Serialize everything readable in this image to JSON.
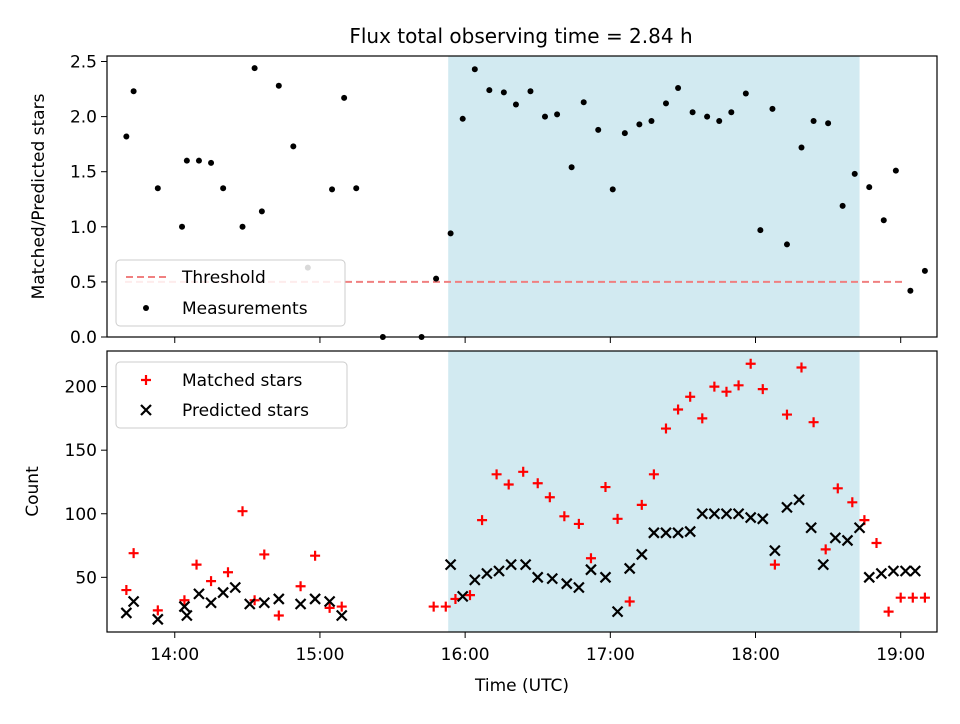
{
  "title": "Flux total observing time = 2.84 h",
  "colors": {
    "band": "#add8e6",
    "threshold": "#f08080",
    "matched": "#ff0000",
    "predicted": "#000000",
    "measurement": "#000000"
  },
  "chart_data": [
    {
      "type": "scatter",
      "ylabel": "Matched/Predicted stars",
      "xlim": [
        "13:32",
        "19:15"
      ],
      "ylim": [
        0,
        2.55
      ],
      "yticks": [
        "0.0",
        "0.5",
        "1.0",
        "1.5",
        "2.0",
        "2.5"
      ],
      "shaded_interval": [
        "15:53",
        "18:43"
      ],
      "threshold": 0.5,
      "legend": {
        "position": "lower-left",
        "entries": [
          "Threshold",
          "Measurements"
        ]
      },
      "series": [
        {
          "name": "Measurements",
          "x": [
            "13:40",
            "13:43",
            "13:53",
            "14:03",
            "14:05",
            "14:10",
            "14:15",
            "14:20",
            "14:28",
            "14:33",
            "14:36",
            "14:43",
            "14:49",
            "14:55",
            "15:05",
            "15:10",
            "15:15",
            "15:26",
            "15:42",
            "15:48",
            "15:54",
            "15:59",
            "16:04",
            "16:10",
            "16:16",
            "16:21",
            "16:27",
            "16:33",
            "16:38",
            "16:44",
            "16:49",
            "16:55",
            "17:01",
            "17:06",
            "17:12",
            "17:17",
            "17:23",
            "17:28",
            "17:34",
            "17:40",
            "17:45",
            "17:50",
            "17:56",
            "18:02",
            "18:07",
            "18:13",
            "18:19",
            "18:24",
            "18:30",
            "18:36",
            "18:41",
            "18:47",
            "18:53",
            "18:58",
            "19:04",
            "19:10"
          ],
          "y": [
            1.82,
            2.23,
            1.35,
            1.0,
            1.6,
            1.6,
            1.58,
            1.35,
            1.0,
            2.44,
            1.14,
            2.28,
            1.73,
            0.63,
            1.34,
            2.17,
            1.35,
            0.0,
            0.0,
            0.53,
            0.94,
            1.98,
            2.43,
            2.24,
            2.22,
            2.11,
            2.23,
            2.0,
            2.02,
            1.54,
            2.13,
            1.88,
            1.34,
            1.85,
            1.93,
            1.96,
            2.12,
            2.26,
            2.04,
            2.0,
            1.96,
            2.04,
            2.21,
            0.97,
            2.07,
            0.84,
            1.72,
            1.96,
            1.94,
            1.19,
            1.48,
            1.36,
            1.06,
            1.51,
            0.42,
            0.6
          ]
        }
      ]
    },
    {
      "type": "scatter",
      "xlabel": "Time (UTC)",
      "ylabel": "Count",
      "xlim": [
        "13:32",
        "19:15"
      ],
      "ylim": [
        7,
        228
      ],
      "yticks": [
        "50",
        "100",
        "150",
        "200"
      ],
      "xticks": [
        "14:00",
        "15:00",
        "16:00",
        "17:00",
        "18:00",
        "19:00"
      ],
      "shaded_interval": [
        "15:53",
        "18:43"
      ],
      "legend": {
        "position": "upper-left",
        "entries": [
          "Matched stars",
          "Predicted stars"
        ]
      },
      "series": [
        {
          "name": "Matched stars",
          "x": [
            "13:40",
            "13:43",
            "13:53",
            "14:04",
            "14:09",
            "14:15",
            "14:22",
            "14:28",
            "14:33",
            "14:37",
            "14:43",
            "14:52",
            "14:58",
            "15:04",
            "15:09",
            "15:47",
            "15:52",
            "15:56",
            "16:02",
            "16:07",
            "16:13",
            "16:18",
            "16:24",
            "16:30",
            "16:35",
            "16:41",
            "16:47",
            "16:52",
            "16:58",
            "17:03",
            "17:08",
            "17:13",
            "17:18",
            "17:23",
            "17:28",
            "17:33",
            "17:38",
            "17:43",
            "17:48",
            "17:53",
            "17:58",
            "18:03",
            "18:08",
            "18:13",
            "18:19",
            "18:24",
            "18:29",
            "18:34",
            "18:40",
            "18:45",
            "18:50",
            "18:55",
            "19:00",
            "19:05",
            "19:10"
          ],
          "y": [
            40,
            69,
            24,
            32,
            60,
            47,
            54,
            102,
            32,
            68,
            20,
            43,
            67,
            26,
            27,
            27,
            27,
            33,
            36,
            95,
            131,
            123,
            133,
            124,
            113,
            98,
            92,
            65,
            121,
            96,
            31,
            107,
            131,
            167,
            182,
            192,
            175,
            200,
            196,
            201,
            218,
            198,
            60,
            178,
            215,
            172,
            72,
            120,
            109,
            95,
            77,
            23,
            34,
            34,
            34
          ]
        },
        {
          "name": "Predicted stars",
          "x": [
            "13:40",
            "13:43",
            "13:53",
            "14:04",
            "14:05",
            "14:10",
            "14:15",
            "14:20",
            "14:25",
            "14:31",
            "14:37",
            "14:43",
            "14:52",
            "14:58",
            "15:04",
            "15:09",
            "15:54",
            "15:59",
            "16:04",
            "16:09",
            "16:14",
            "16:19",
            "16:25",
            "16:30",
            "16:36",
            "16:42",
            "16:47",
            "16:52",
            "16:58",
            "17:03",
            "17:08",
            "17:13",
            "17:18",
            "17:23",
            "17:28",
            "17:33",
            "17:38",
            "17:43",
            "17:48",
            "17:53",
            "17:58",
            "18:03",
            "18:08",
            "18:13",
            "18:18",
            "18:23",
            "18:28",
            "18:33",
            "18:38",
            "18:43",
            "18:47",
            "18:52",
            "18:57",
            "19:02",
            "19:06"
          ],
          "y": [
            22,
            31,
            17,
            27,
            20,
            37,
            30,
            38,
            42,
            29,
            30,
            33,
            29,
            33,
            31,
            20,
            60,
            35,
            48,
            53,
            55,
            60,
            60,
            50,
            49,
            45,
            42,
            56,
            50,
            23,
            57,
            68,
            85,
            85,
            85,
            86,
            100,
            100,
            100,
            100,
            97,
            96,
            71,
            105,
            111,
            89,
            60,
            81,
            79,
            89,
            50,
            53,
            55,
            55,
            55
          ]
        }
      ]
    }
  ]
}
